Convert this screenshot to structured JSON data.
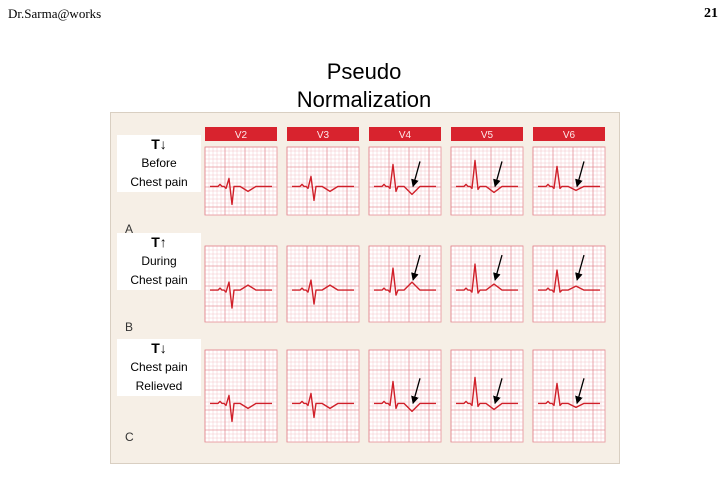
{
  "header": {
    "author": "Dr.Sarma@works",
    "page_number": "21"
  },
  "title_lines": [
    "Pseudo",
    "Normalization"
  ],
  "leads": [
    "V2",
    "V3",
    "V4",
    "V5",
    "V6"
  ],
  "rows": [
    {
      "panel_letter": "A",
      "t_label": "T↓",
      "caption_lines": [
        "Before",
        "Chest pain"
      ],
      "t_wave": "inverted",
      "arrow_leads": [
        "V4",
        "V5",
        "V6"
      ]
    },
    {
      "panel_letter": "B",
      "t_label": "T↑",
      "caption_lines": [
        "During",
        "Chest pain"
      ],
      "t_wave": "upright",
      "arrow_leads": [
        "V4",
        "V5",
        "V6"
      ]
    },
    {
      "panel_letter": "C",
      "t_label": "T↓",
      "caption_lines": [
        "Chest pain",
        "Relieved"
      ],
      "t_wave": "inverted",
      "arrow_leads": [
        "V4",
        "V5",
        "V6"
      ]
    }
  ],
  "colors": {
    "trace": "#d0202a",
    "grid_minor": "#f1b8bd",
    "grid_major": "#e07f88",
    "panel_bg": "#ffffff",
    "lead_bar": "#d8232e",
    "figure_bg": "#f6efe6"
  }
}
